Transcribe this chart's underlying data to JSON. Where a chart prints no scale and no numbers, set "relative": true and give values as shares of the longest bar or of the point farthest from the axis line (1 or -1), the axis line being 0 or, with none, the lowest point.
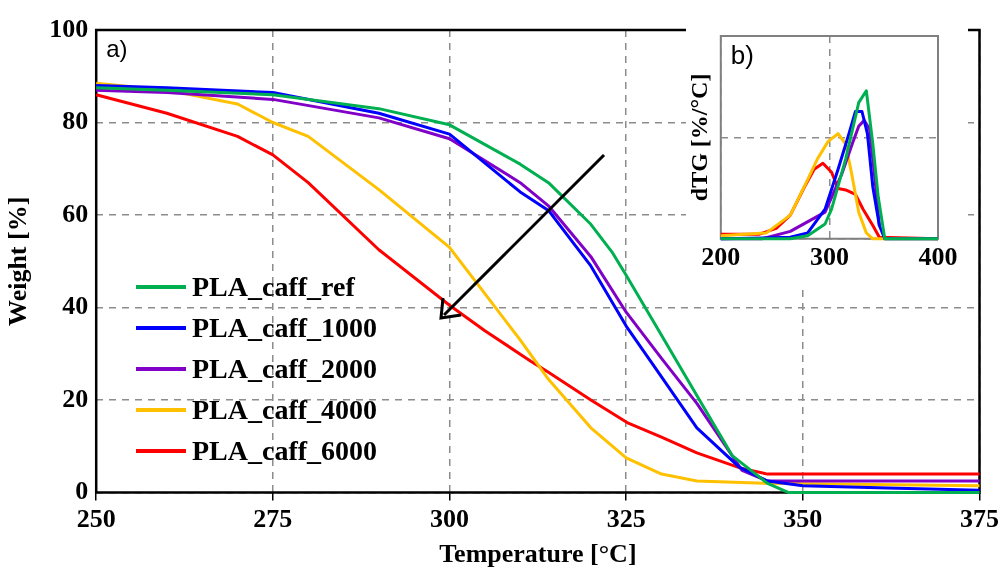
{
  "chart_data": [
    {
      "type": "line",
      "xlabel": "Temperature [°C]",
      "ylabel": "Weight [%]",
      "xlim": [
        250,
        375
      ],
      "xticks": [
        250,
        275,
        300,
        325,
        350,
        375
      ],
      "ylim": [
        0,
        100
      ],
      "yticks": [
        0,
        20,
        40,
        60,
        80,
        100
      ],
      "grid": true,
      "legend": "bottom left",
      "marker": "none",
      "annotations": [
        "a)"
      ],
      "series": [
        {
          "name": "PLA_caff_ref",
          "color": "#00b050",
          "x": [
            250,
            260,
            275,
            290,
            300,
            310,
            314,
            320,
            323,
            325,
            327.5,
            330,
            335,
            340,
            345,
            348,
            375
          ],
          "values": [
            87.5,
            87,
            86,
            83,
            79.5,
            71,
            67,
            58,
            52,
            47,
            40.5,
            34,
            21,
            8,
            2,
            0,
            0
          ]
        },
        {
          "name": "PLA_caff_1000",
          "color": "#0000ff",
          "x": [
            250,
            260,
            275,
            290,
            300,
            310,
            314,
            320,
            325,
            330,
            335,
            341,
            345,
            350,
            362,
            375
          ],
          "values": [
            88,
            87.5,
            86.5,
            82,
            77.5,
            65,
            61,
            49,
            36,
            25,
            14,
            5.5,
            2.5,
            1.5,
            1,
            0.5
          ]
        },
        {
          "name": "PLA_caff_2000",
          "color": "#8000c8",
          "x": [
            250,
            260,
            275,
            290,
            300,
            310,
            314,
            320,
            325,
            330,
            335,
            341.4,
            345,
            375
          ],
          "values": [
            87,
            86.5,
            85,
            81,
            76.5,
            67,
            62,
            51,
            39,
            29,
            19.3,
            4.8,
            2.5,
            2.5
          ]
        },
        {
          "name": "PLA_caff_4000",
          "color": "#ffc000",
          "x": [
            250,
            260,
            270,
            275,
            280,
            290,
            300,
            305,
            310,
            314,
            320,
            325,
            330,
            335,
            345,
            375
          ],
          "values": [
            88.5,
            87,
            84,
            80,
            77,
            65.5,
            53,
            43,
            33,
            24.5,
            14,
            7.5,
            4,
            2.5,
            2,
            1.5
          ]
        },
        {
          "name": "PLA_caff_6000",
          "color": "#ff0000",
          "x": [
            250,
            260,
            270,
            275,
            280,
            290,
            300,
            305,
            311.5,
            314,
            320,
            325.3,
            330,
            335,
            341.4,
            345,
            375
          ],
          "values": [
            86,
            82,
            77,
            73,
            67,
            52.5,
            40.5,
            35,
            28.4,
            26,
            20,
            15,
            12,
            8.6,
            5.2,
            4,
            4
          ]
        }
      ]
    },
    {
      "type": "line",
      "ylabel": "dTG [%/°C]",
      "xlim": [
        200,
        400
      ],
      "xticks": [
        200,
        300,
        400
      ],
      "relative": true,
      "grid": true,
      "marker": "none",
      "annotations": [
        "b)"
      ],
      "series": [
        {
          "color": "#00b050",
          "x": [
            200,
            264,
            280,
            296,
            302,
            315,
            327,
            334,
            340,
            345,
            351,
            400
          ],
          "values": [
            0,
            0,
            0.02,
            0.1,
            0.2,
            0.54,
            0.92,
            1,
            0.64,
            0.28,
            0,
            0
          ]
        },
        {
          "color": "#0000ff",
          "x": [
            200,
            264,
            280,
            296,
            308,
            318,
            324,
            330,
            335,
            340,
            346,
            351,
            400
          ],
          "values": [
            0,
            0.01,
            0.04,
            0.2,
            0.47,
            0.71,
            0.86,
            0.86,
            0.71,
            0.35,
            0.09,
            0,
            0
          ]
        },
        {
          "color": "#8000c8",
          "x": [
            200,
            238,
            264,
            296,
            311,
            321,
            327,
            332,
            337,
            342,
            346
          ],
          "values": [
            0,
            0,
            0.05,
            0.18,
            0.43,
            0.64,
            0.76,
            0.8,
            0.74,
            0.4,
            0.09
          ]
        },
        {
          "color": "#ffc000",
          "x": [
            200,
            242,
            264,
            280,
            289,
            299,
            308,
            315,
            321,
            327,
            334,
            340,
            400
          ],
          "values": [
            0.02,
            0.04,
            0.16,
            0.4,
            0.54,
            0.66,
            0.71,
            0.64,
            0.42,
            0.18,
            0.04,
            0,
            0
          ]
        },
        {
          "color": "#ff0000",
          "x": [
            200,
            235,
            251,
            264,
            277,
            286,
            294,
            302,
            308,
            315,
            324,
            331,
            340,
            346,
            400
          ],
          "values": [
            0.03,
            0.03,
            0.07,
            0.16,
            0.35,
            0.47,
            0.51,
            0.45,
            0.34,
            0.33,
            0.3,
            0.2,
            0.09,
            0.01,
            0
          ]
        }
      ]
    }
  ]
}
